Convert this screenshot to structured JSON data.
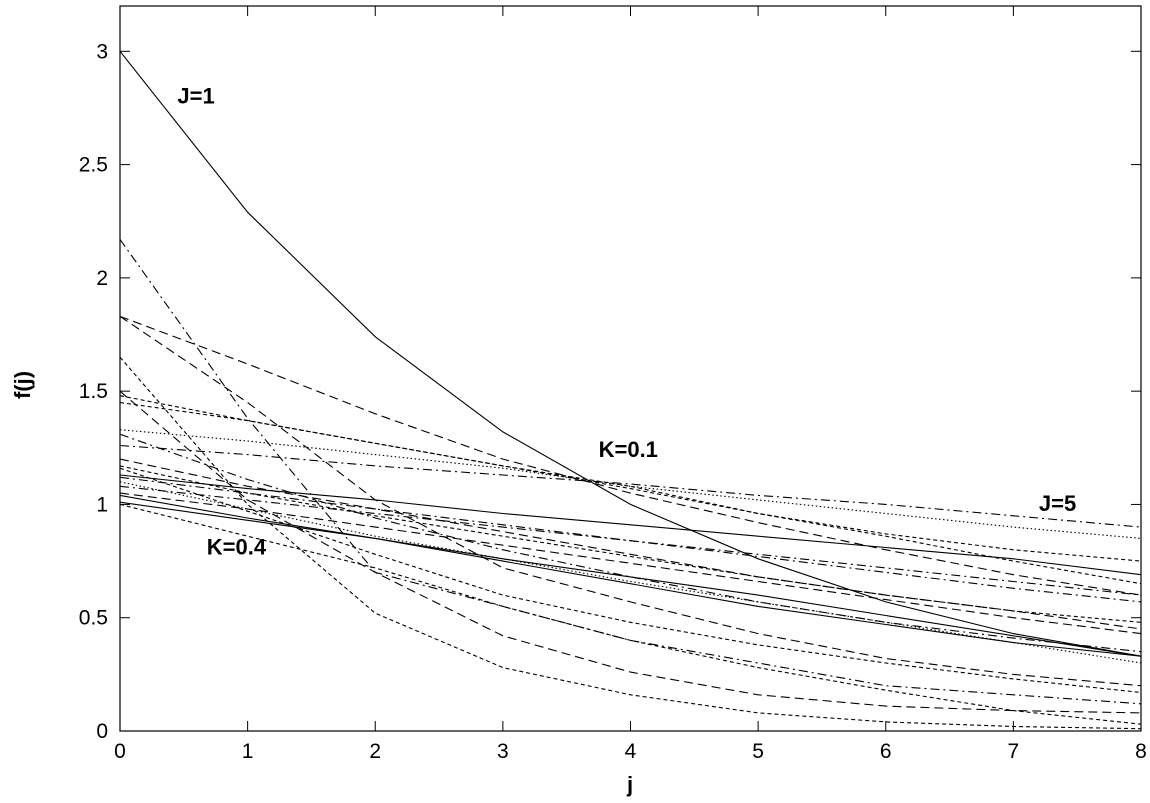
{
  "chart_data": {
    "type": "line",
    "title": "",
    "xlabel": "j",
    "ylabel": "f(j)",
    "xlim": [
      0,
      8
    ],
    "ylim": [
      0,
      3.2
    ],
    "xticks": [
      "0",
      "1",
      "2",
      "3",
      "4",
      "5",
      "6",
      "7",
      "8"
    ],
    "yticks": [
      "0",
      "0.5",
      "1",
      "1.5",
      "2",
      "2.5",
      "3"
    ],
    "grid": false,
    "legend": "none",
    "x": [
      0,
      1,
      2,
      3,
      4,
      5,
      6,
      7,
      8
    ],
    "annotations": [
      {
        "text": "J=1",
        "x": 0.45,
        "y": 2.77
      },
      {
        "text": "K=0.1",
        "x": 3.75,
        "y": 1.21
      },
      {
        "text": "J=5",
        "x": 7.2,
        "y": 0.97
      },
      {
        "text": "K=0.4",
        "x": 0.68,
        "y": 0.78
      }
    ],
    "series": [
      {
        "style": "solid",
        "values": [
          3.0,
          2.29,
          1.74,
          1.32,
          1.0,
          0.76,
          0.57,
          0.43,
          0.33
        ]
      },
      {
        "style": "solid",
        "values": [
          1.13,
          1.07,
          1.02,
          0.96,
          0.91,
          0.86,
          0.81,
          0.76,
          0.69
        ]
      },
      {
        "style": "solid",
        "values": [
          1.04,
          0.94,
          0.85,
          0.75,
          0.65,
          0.55,
          0.47,
          0.39,
          0.33
        ]
      },
      {
        "style": "solid",
        "values": [
          1.01,
          0.93,
          0.85,
          0.76,
          0.68,
          0.6,
          0.51,
          0.42,
          0.33
        ]
      },
      {
        "style": "dashdot",
        "values": [
          2.17,
          1.38,
          0.7,
          0.55,
          0.4,
          0.3,
          0.2,
          0.16,
          0.12
        ]
      },
      {
        "style": "dashdot",
        "values": [
          1.26,
          1.22,
          1.17,
          1.13,
          1.09,
          1.04,
          1.0,
          0.95,
          0.9
        ]
      },
      {
        "style": "dashdot",
        "values": [
          1.31,
          1.11,
          0.94,
          0.8,
          0.68,
          0.57,
          0.48,
          0.41,
          0.35
        ]
      },
      {
        "style": "dashdot",
        "values": [
          1.12,
          1.05,
          0.98,
          0.91,
          0.84,
          0.77,
          0.7,
          0.63,
          0.57
        ]
      },
      {
        "style": "dashdot",
        "values": [
          1.08,
          1.02,
          0.96,
          0.9,
          0.84,
          0.78,
          0.72,
          0.66,
          0.6
        ]
      },
      {
        "style": "dashed",
        "values": [
          1.83,
          1.62,
          1.4,
          1.2,
          1.05,
          0.92,
          0.8,
          0.69,
          0.6
        ]
      },
      {
        "style": "dashed",
        "values": [
          1.83,
          1.45,
          1.02,
          0.72,
          0.57,
          0.43,
          0.32,
          0.25,
          0.2
        ]
      },
      {
        "style": "dashed",
        "values": [
          1.5,
          1.02,
          0.7,
          0.42,
          0.26,
          0.16,
          0.11,
          0.09,
          0.08
        ]
      },
      {
        "style": "dashed",
        "values": [
          1.2,
          1.08,
          0.98,
          0.88,
          0.78,
          0.68,
          0.6,
          0.53,
          0.45
        ]
      },
      {
        "style": "dashed",
        "values": [
          1.05,
          0.98,
          0.9,
          0.82,
          0.74,
          0.66,
          0.58,
          0.5,
          0.43
        ]
      },
      {
        "style": "dotted",
        "values": [
          1.33,
          1.28,
          1.22,
          1.16,
          1.08,
          1.02,
          0.96,
          0.9,
          0.85
        ]
      },
      {
        "style": "dotted",
        "values": [
          1.1,
          0.98,
          0.86,
          0.76,
          0.66,
          0.57,
          0.48,
          0.39,
          0.3
        ]
      },
      {
        "style": "shortdash",
        "values": [
          1.65,
          1.0,
          0.52,
          0.28,
          0.16,
          0.08,
          0.04,
          0.02,
          0.01
        ]
      },
      {
        "style": "shortdash",
        "values": [
          1.48,
          1.37,
          1.27,
          1.17,
          1.07,
          0.96,
          0.87,
          0.8,
          0.75
        ]
      },
      {
        "style": "shortdash",
        "values": [
          1.45,
          1.37,
          1.27,
          1.17,
          1.08,
          0.96,
          0.86,
          0.75,
          0.65
        ]
      },
      {
        "style": "shortdash",
        "values": [
          1.17,
          1.05,
          0.95,
          0.86,
          0.77,
          0.68,
          0.6,
          0.53,
          0.48
        ]
      },
      {
        "style": "shortdash",
        "values": [
          1.16,
          0.97,
          0.78,
          0.6,
          0.48,
          0.38,
          0.3,
          0.23,
          0.17
        ]
      },
      {
        "style": "shortdash",
        "values": [
          1.0,
          0.86,
          0.72,
          0.55,
          0.4,
          0.28,
          0.18,
          0.09,
          0.03
        ]
      }
    ]
  }
}
